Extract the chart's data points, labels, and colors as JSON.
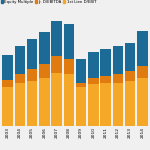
{
  "years": [
    "2003",
    "2004",
    "2005",
    "2006",
    "2007",
    "2008",
    "2009",
    "2010",
    "2011",
    "2012",
    "2013",
    "2014"
  ],
  "first_lien": [
    2.8,
    3.1,
    3.2,
    3.4,
    3.8,
    3.7,
    2.8,
    3.0,
    3.1,
    3.1,
    3.2,
    3.4
  ],
  "jr_debt": [
    0.5,
    0.6,
    0.9,
    1.0,
    1.2,
    1.1,
    0.3,
    0.4,
    0.5,
    0.6,
    0.7,
    0.9
  ],
  "equity": [
    1.8,
    2.0,
    2.1,
    2.3,
    2.6,
    2.5,
    1.7,
    1.9,
    1.9,
    2.0,
    2.0,
    2.5
  ],
  "color_first_lien": "#f5a828",
  "color_jr_debt": "#e07b10",
  "color_equity": "#1c6b96",
  "legend_labels": [
    "Equity Multiple",
    "Jr. D/EBITDA",
    "1st Lien D/EBIT"
  ],
  "background_color": "#f0f0f0",
  "ylim": [
    0,
    7.5
  ],
  "bar_width": 0.85
}
